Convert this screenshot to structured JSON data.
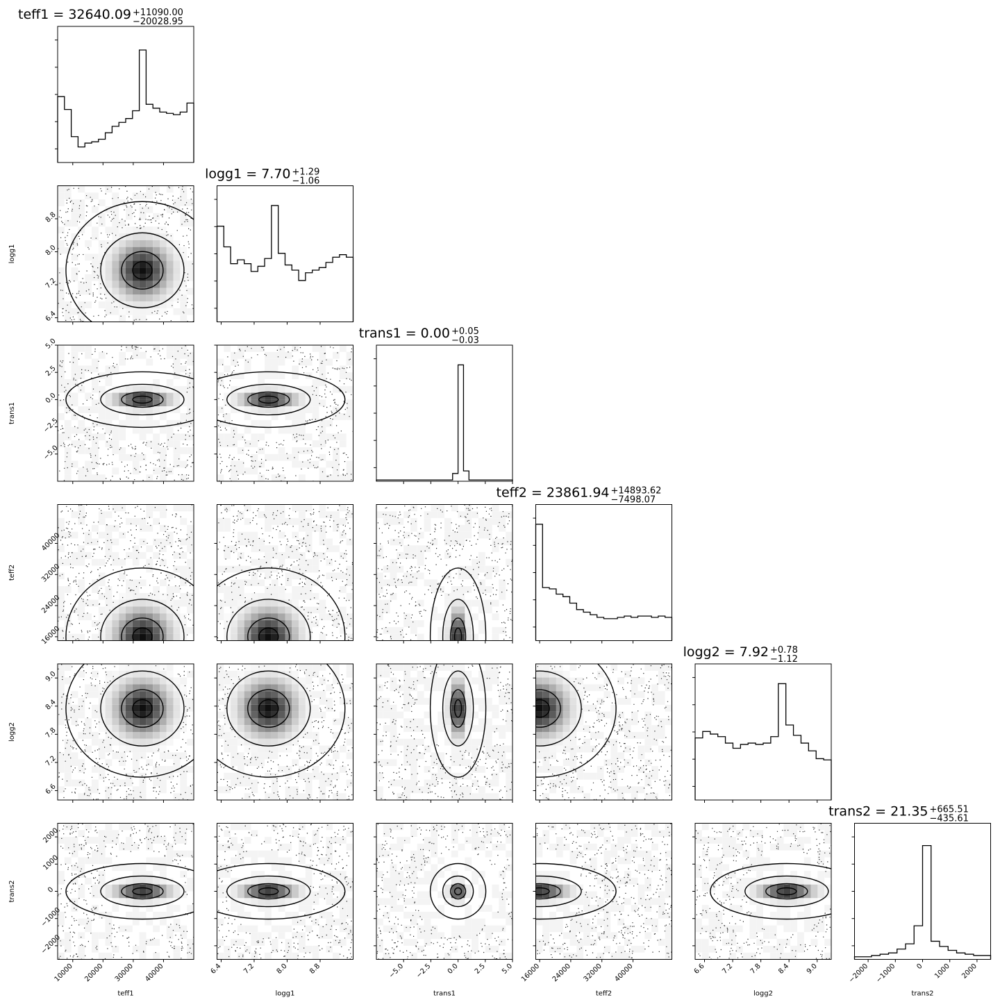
{
  "figure": {
    "type": "corner-plot",
    "params": [
      "teff1",
      "logg1",
      "trans1",
      "teff2",
      "logg2",
      "trans2"
    ],
    "axis_labels": [
      "teff1",
      "logg1",
      "trans1",
      "teff2",
      "logg2",
      "trans2"
    ]
  },
  "chart_data": [
    {
      "type": "histogram",
      "param": "teff1",
      "title_main": "teff1 = 32640.09",
      "title_upper": "+11090.00",
      "title_lower": "−20028.95",
      "xlim": [
        5000,
        50000
      ],
      "values": [
        0.51,
        0.41,
        0.2,
        0.12,
        0.15,
        0.16,
        0.18,
        0.23,
        0.28,
        0.31,
        0.34,
        0.4,
        0.87,
        0.45,
        0.42,
        0.39,
        0.38,
        0.37,
        0.39,
        0.46
      ]
    },
    {
      "type": "histogram",
      "param": "logg1",
      "title_main": "logg1 = 7.70",
      "title_upper": "+1.29",
      "title_lower": "−1.06",
      "xlim": [
        6.3,
        9.6
      ],
      "values": [
        0.74,
        0.58,
        0.45,
        0.48,
        0.45,
        0.39,
        0.43,
        0.49,
        0.9,
        0.53,
        0.44,
        0.4,
        0.32,
        0.38,
        0.4,
        0.42,
        0.46,
        0.5,
        0.52,
        0.5
      ]
    },
    {
      "type": "histogram",
      "param": "trans1",
      "title_main": "trans1 = 0.00",
      "title_upper": "+0.05",
      "title_lower": "−0.03",
      "xlim": [
        -7.5,
        5.0
      ],
      "values": [
        0.01,
        0.01,
        0.01,
        0.01,
        0.01,
        0.01,
        0.01,
        0.01,
        0.01,
        0.01,
        0.01,
        0.01,
        0.01,
        0.01,
        0.06,
        0.9,
        0.08,
        0.01,
        0.01,
        0.01,
        0.01,
        0.01,
        0.01,
        0.01,
        0.01
      ]
    },
    {
      "type": "histogram",
      "param": "teff2",
      "title_main": "teff2 = 23861.94",
      "title_upper": "+14893.62",
      "title_lower": "−7498.07",
      "xlim": [
        15000,
        50000
      ],
      "values": [
        0.9,
        0.41,
        0.4,
        0.36,
        0.34,
        0.29,
        0.24,
        0.22,
        0.2,
        0.18,
        0.17,
        0.17,
        0.18,
        0.19,
        0.18,
        0.19,
        0.19,
        0.18,
        0.19,
        0.18
      ]
    },
    {
      "type": "histogram",
      "param": "logg2",
      "title_main": "logg2 = 7.92",
      "title_upper": "+0.78",
      "title_lower": "−1.12",
      "xlim": [
        6.4,
        9.3
      ],
      "values": [
        0.48,
        0.53,
        0.51,
        0.49,
        0.44,
        0.4,
        0.43,
        0.44,
        0.43,
        0.44,
        0.49,
        0.9,
        0.58,
        0.5,
        0.44,
        0.38,
        0.32,
        0.31
      ]
    },
    {
      "type": "histogram",
      "param": "trans2",
      "title_main": "trans2 = 21.35",
      "title_upper": "+665.51",
      "title_lower": "−435.61",
      "xlim": [
        -2500,
        2500
      ],
      "values": [
        0.02,
        0.02,
        0.03,
        0.04,
        0.05,
        0.08,
        0.12,
        0.26,
        0.88,
        0.14,
        0.1,
        0.07,
        0.05,
        0.04,
        0.03,
        0.03
      ]
    }
  ],
  "axes": {
    "teff1": {
      "range": [
        5000,
        50000
      ],
      "ticks": [
        10000,
        20000,
        30000,
        40000
      ],
      "labels": [
        "10000",
        "20000",
        "30000",
        "40000"
      ]
    },
    "logg1": {
      "range": [
        6.3,
        9.6
      ],
      "ticks": [
        6.4,
        7.2,
        8.0,
        8.8
      ],
      "labels": [
        "6.4",
        "7.2",
        "8.0",
        "8.8"
      ]
    },
    "trans1": {
      "range": [
        -7.5,
        5.0
      ],
      "ticks": [
        -5.0,
        -2.5,
        0.0,
        2.5,
        5.0
      ],
      "labels": [
        "−5.0",
        "−2.5",
        "0.0",
        "2.5",
        "5.0"
      ]
    },
    "teff2": {
      "range": [
        15000,
        50000
      ],
      "ticks": [
        16000,
        24000,
        32000,
        40000
      ],
      "labels": [
        "16000",
        "24000",
        "32000",
        "40000"
      ]
    },
    "logg2": {
      "range": [
        6.4,
        9.3
      ],
      "ticks": [
        6.6,
        7.2,
        7.8,
        8.4,
        9.0
      ],
      "labels": [
        "6.6",
        "7.2",
        "7.8",
        "8.4",
        "9.0"
      ]
    },
    "trans2": {
      "range": [
        -2500,
        2500
      ],
      "ticks": [
        -2000,
        -1000,
        0,
        1000,
        2000
      ],
      "labels": [
        "−2000",
        "−1000",
        "0",
        "1000",
        "2000"
      ]
    }
  },
  "peaks": {
    "teff1": [
      33000
    ],
    "logg1": [
      7.55
    ],
    "trans1": [
      0.0
    ],
    "teff2": [
      16000
    ],
    "logg2": [
      8.35
    ],
    "trans2": [
      0
    ]
  }
}
